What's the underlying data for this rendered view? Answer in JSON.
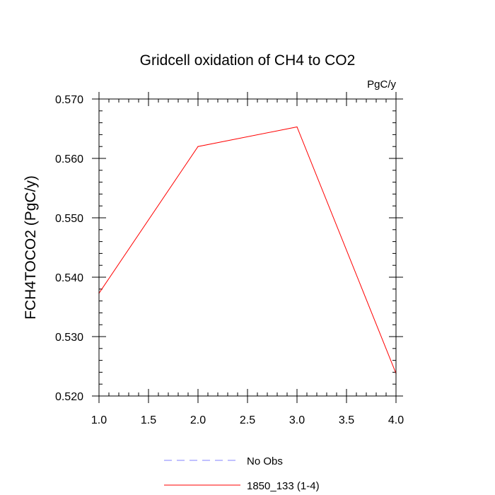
{
  "chart_data": {
    "type": "line",
    "title": "Gridcell oxidation of CH4 to CO2",
    "units_label": "PgC/y",
    "xlabel": "",
    "ylabel": "FCH4TOCO2  (PgC/y)",
    "xlim": [
      1.0,
      4.0
    ],
    "ylim": [
      0.52,
      0.57
    ],
    "x_major_ticks": [
      1.0,
      1.5,
      2.0,
      2.5,
      3.0,
      3.5,
      4.0
    ],
    "x_tick_labels": [
      "1.0",
      "1.5",
      "2.0",
      "2.5",
      "3.0",
      "3.5",
      "4.0"
    ],
    "x_minor_step": 0.1,
    "y_major_ticks": [
      0.52,
      0.53,
      0.54,
      0.55,
      0.56,
      0.57
    ],
    "y_tick_labels": [
      "0.520",
      "0.530",
      "0.540",
      "0.550",
      "0.560",
      "0.570"
    ],
    "y_minor_step": 0.002,
    "grid": false,
    "legend_position": "bottom-center",
    "series": [
      {
        "name": "1850_133 (1-4)",
        "color": "#ff0000",
        "dash": "solid",
        "x": [
          1.0,
          2.0,
          3.0,
          4.0
        ],
        "values": [
          0.5373,
          0.562,
          0.5653,
          0.5238
        ]
      }
    ],
    "legend": [
      {
        "label": "No Obs",
        "color": "#8080ff",
        "dash": "dashed"
      },
      {
        "label": "1850_133 (1-4)",
        "color": "#ff0000",
        "dash": "solid"
      }
    ]
  }
}
